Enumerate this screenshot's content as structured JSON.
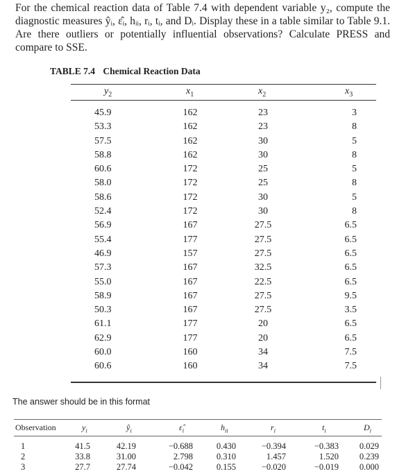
{
  "question": "For the chemical reaction data of Table 7.4 with dependent variable y₂, compute the diagnostic measures ŷᵢ, ε̂ᵢ, hᵢᵢ, rᵢ, tᵢ, and Dᵢ. Display these in a table similar to Table 9.1. Are there outliers or potentially influential observations? Calculate PRESS and compare to SSE.",
  "table74": {
    "number": "TABLE 7.4",
    "title": "Chemical Reaction Data",
    "headers": [
      {
        "base": "y",
        "sub": "2"
      },
      {
        "base": "x",
        "sub": "1"
      },
      {
        "base": "x",
        "sub": "2"
      },
      {
        "base": "x",
        "sub": "3"
      }
    ],
    "rows": [
      [
        "45.9",
        "162",
        "23",
        "3"
      ],
      [
        "53.3",
        "162",
        "23",
        "8"
      ],
      [
        "57.5",
        "162",
        "30",
        "5"
      ],
      [
        "58.8",
        "162",
        "30",
        "8"
      ],
      [
        "60.6",
        "172",
        "25",
        "5"
      ],
      [
        "58.0",
        "172",
        "25",
        "8"
      ],
      [
        "58.6",
        "172",
        "30",
        "5"
      ],
      [
        "52.4",
        "172",
        "30",
        "8"
      ],
      [
        "56.9",
        "167",
        "27.5",
        "6.5"
      ],
      [
        "55.4",
        "177",
        "27.5",
        "6.5"
      ],
      [
        "46.9",
        "157",
        "27.5",
        "6.5"
      ],
      [
        "57.3",
        "167",
        "32.5",
        "6.5"
      ],
      [
        "55.0",
        "167",
        "22.5",
        "6.5"
      ],
      [
        "58.9",
        "167",
        "27.5",
        "9.5"
      ],
      [
        "50.3",
        "167",
        "27.5",
        "3.5"
      ],
      [
        "61.1",
        "177",
        "20",
        "6.5"
      ],
      [
        "62.9",
        "177",
        "20",
        "6.5"
      ],
      [
        "60.0",
        "160",
        "34",
        "7.5"
      ],
      [
        "60.6",
        "160",
        "34",
        "7.5"
      ]
    ]
  },
  "format_note": "The answer should be in this format",
  "answer_table": {
    "headers": [
      {
        "base": "Observation",
        "sub": ""
      },
      {
        "base": "y",
        "sub": "i"
      },
      {
        "base": "ŷ",
        "sub": "i"
      },
      {
        "base": "ε̂",
        "sub": "i"
      },
      {
        "base": "h",
        "sub": "ii"
      },
      {
        "base": "r",
        "sub": "i"
      },
      {
        "base": "t",
        "sub": "i"
      },
      {
        "base": "D",
        "sub": "i"
      }
    ],
    "rows": [
      [
        "1",
        "41.5",
        "42.19",
        "−0.688",
        "0.430",
        "−0.394",
        "−0.383",
        "0.029"
      ],
      [
        "2",
        "33.8",
        "31.00",
        "2.798",
        "0.310",
        "1.457",
        "1.520",
        "0.239"
      ],
      [
        "3",
        "27.7",
        "27.74",
        "−0.042",
        "0.155",
        "−0.020",
        "−0.019",
        "0.000"
      ]
    ]
  }
}
